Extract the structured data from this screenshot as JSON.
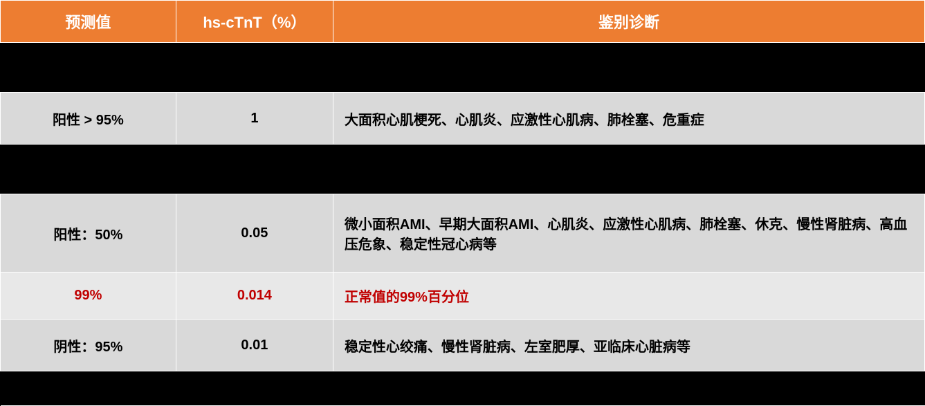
{
  "table": {
    "header_bg": "#ED7D31",
    "header_text_color": "#ffffff",
    "row_bg_gray": "#D9D9D9",
    "row_bg_light": "#E8E8E8",
    "red_color": "#C00000",
    "black_bg": "#000000",
    "border_color": "#ffffff",
    "header_fontsize": 22,
    "cell_fontsize": 20,
    "columns": [
      {
        "label": "预测值",
        "width": "19%"
      },
      {
        "label": "hs-cTnT（%）",
        "width": "17%"
      },
      {
        "label": "鉴别诊断",
        "width": "64%"
      }
    ],
    "rows": [
      {
        "type": "spacer"
      },
      {
        "type": "data",
        "bg": "gray",
        "cells": [
          {
            "text": "阳性 > 95%",
            "align": "center"
          },
          {
            "text": "1",
            "align": "center"
          },
          {
            "text": "大面积心肌梗死、心肌炎、应激性心肌病、肺栓塞、危重症",
            "align": "left"
          }
        ]
      },
      {
        "type": "spacer"
      },
      {
        "type": "data-tall",
        "bg": "gray",
        "cells": [
          {
            "text": "阳性：50%",
            "align": "center"
          },
          {
            "text": "0.05",
            "align": "center"
          },
          {
            "text": "微小面积AMI、早期大面积AMI、心肌炎、应激性心肌病、肺栓塞、休克、慢性肾脏病、高血压危象、稳定性冠心病等",
            "align": "left"
          }
        ]
      },
      {
        "type": "data-med",
        "bg": "light-gray",
        "red": true,
        "cells": [
          {
            "text": "99%",
            "align": "center"
          },
          {
            "text": "0.014",
            "align": "center"
          },
          {
            "text": "正常值的99%百分位",
            "align": "left"
          }
        ]
      },
      {
        "type": "data",
        "bg": "gray",
        "cells": [
          {
            "text": "阴性：95%",
            "align": "center"
          },
          {
            "text": "0.01",
            "align": "center"
          },
          {
            "text": "稳定性心绞痛、慢性肾脏病、左室肥厚、亚临床心脏病等",
            "align": "left"
          }
        ]
      },
      {
        "type": "spacer-small"
      }
    ]
  }
}
